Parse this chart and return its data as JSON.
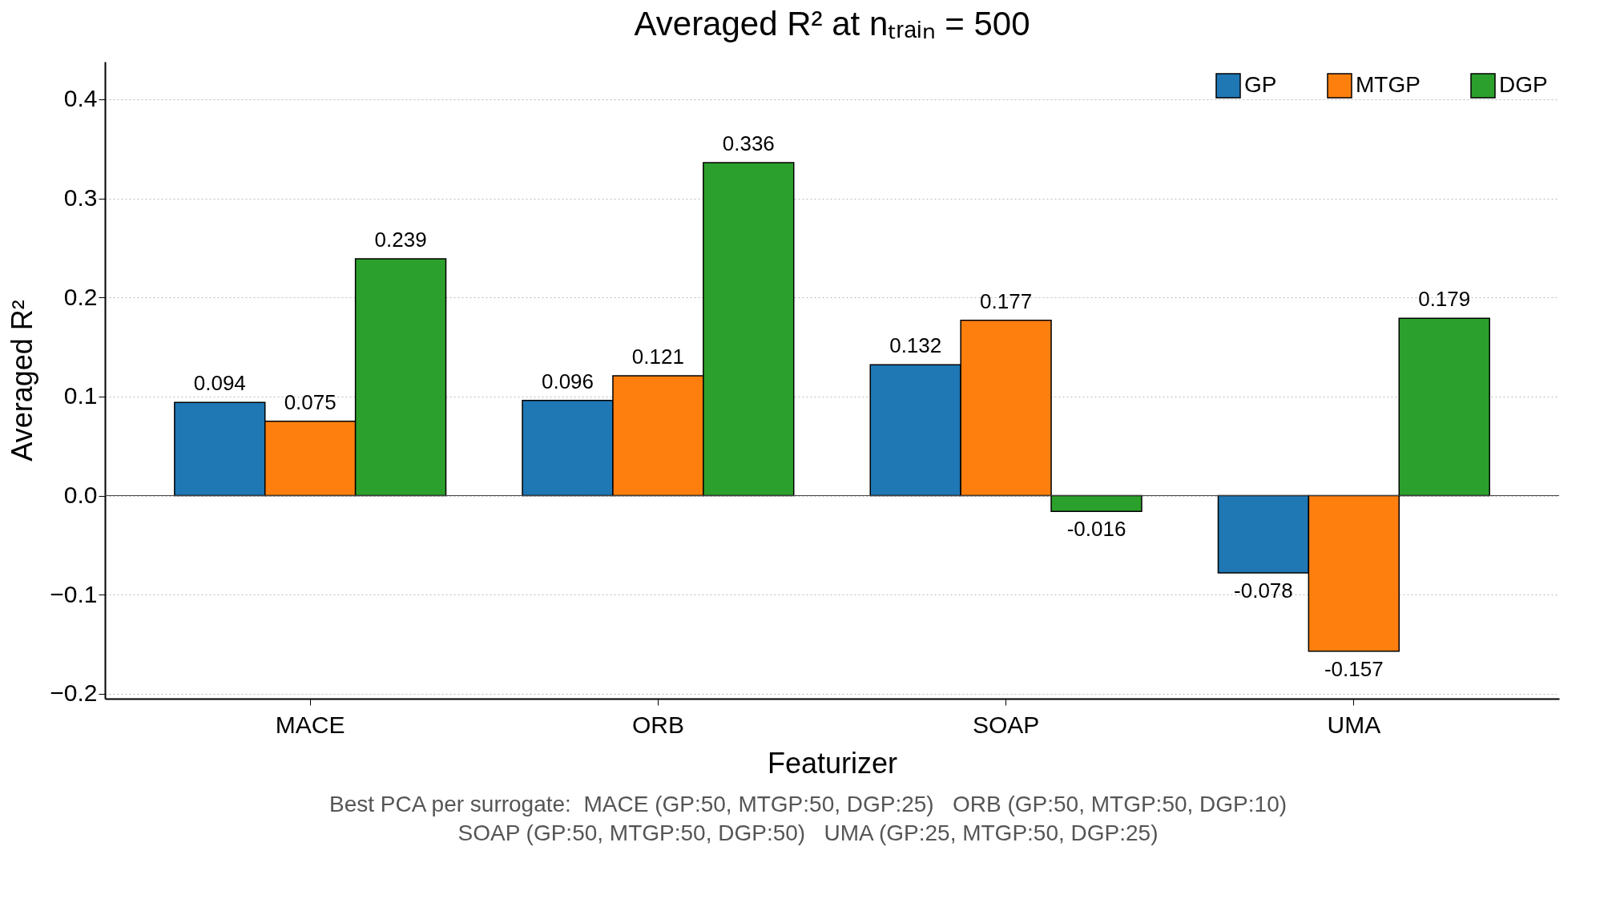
{
  "chart_data": {
    "type": "bar",
    "title": "Averaged R² at nₜᵣₐᵢₙ = 500",
    "xlabel": "Featurizer",
    "ylabel": "Averaged R²",
    "categories": [
      "MACE",
      "ORB",
      "SOAP",
      "UMA"
    ],
    "series": [
      {
        "name": "GP",
        "color": "#1f77b4",
        "values": [
          0.094,
          0.096,
          0.132,
          -0.078
        ]
      },
      {
        "name": "MTGP",
        "color": "#ff7f0e",
        "values": [
          0.075,
          0.121,
          0.177,
          -0.157
        ]
      },
      {
        "name": "DGP",
        "color": "#2ca02c",
        "values": [
          0.239,
          0.336,
          -0.016,
          0.179
        ]
      }
    ],
    "ylim": [
      -0.205,
      0.438
    ],
    "yticks": [
      {
        "value": -0.2,
        "label": "−0.2"
      },
      {
        "value": -0.1,
        "label": "−0.1"
      },
      {
        "value": 0,
        "label": "0.0"
      },
      0.1,
      0.2,
      0.3,
      0.4
    ],
    "grid": "y",
    "legend": "top right",
    "data_labels": true,
    "ref_lines": [
      {
        "axis": "y",
        "value": 0
      }
    ],
    "annotations": [
      "Best PCA per surrogate:  MACE (GP:50, MTGP:50, DGP:25)   ORB (GP:50, MTGP:50, DGP:10)",
      "SOAP (GP:50, MTGP:50, DGP:50)   UMA (GP:25, MTGP:50, DGP:25)"
    ]
  }
}
